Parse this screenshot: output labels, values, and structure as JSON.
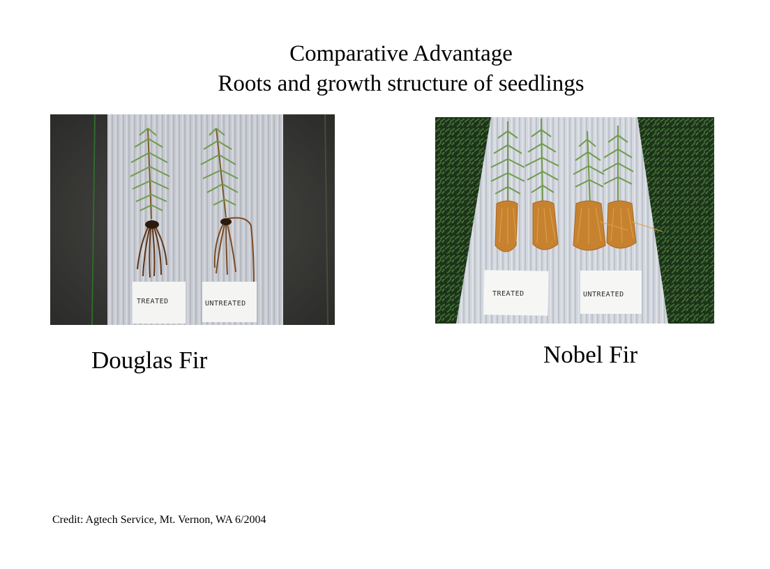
{
  "slide": {
    "title_line1": "Comparative Advantage",
    "title_line2": "Roots and growth structure of seedlings",
    "credit": "Credit: Agtech Service, Mt. Vernon, WA 6/2004"
  },
  "photos": [
    {
      "caption": "Douglas Fir",
      "labels": [
        "TREATED",
        "UNTREATED"
      ]
    },
    {
      "caption": "Nobel Fir",
      "labels": [
        "TREATED",
        "UNTREATED"
      ]
    }
  ],
  "colors": {
    "board": "#c9ccd2",
    "background_left": "#3a3a38",
    "background_right": "#1f3a1c",
    "foliage": "#6f9a4a",
    "roots_dark": "#6a3818",
    "roots_light": "#c7822f"
  }
}
